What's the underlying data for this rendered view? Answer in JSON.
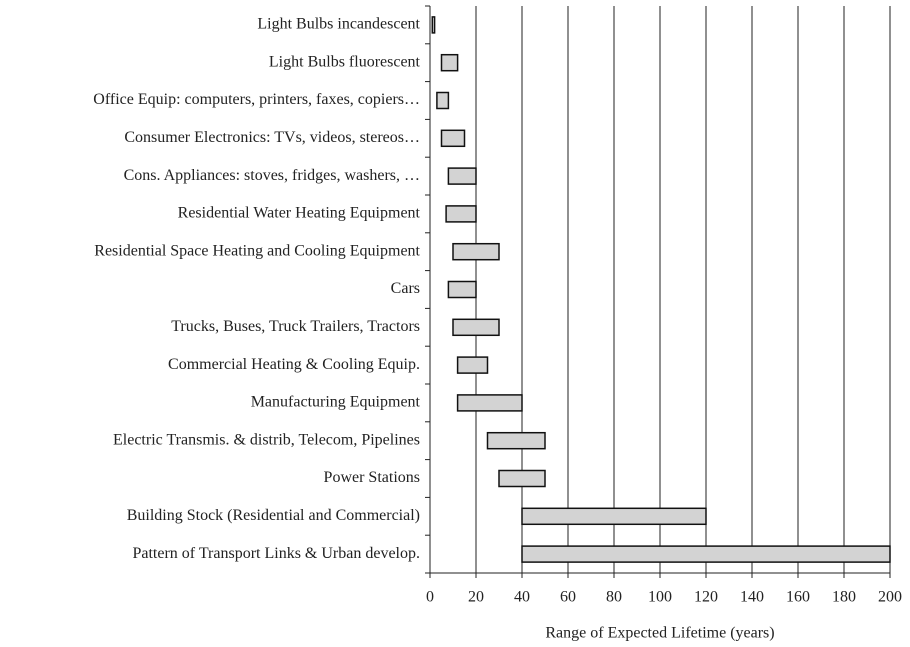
{
  "chart_data": {
    "type": "range-bar",
    "categories": [
      "Light Bulbs incandescent",
      "Light Bulbs fluorescent",
      "Office Equip: computers, printers, faxes, copiers…",
      "Consumer Electronics: TVs, videos, stereos…",
      "Cons. Appliances: stoves, fridges, washers, …",
      "Residential Water Heating Equipment",
      "Residential Space Heating and Cooling  Equipment",
      "Cars",
      "Trucks, Buses, Truck Trailers, Tractors",
      "Commercial Heating & Cooling Equip.",
      "Manufacturing Equipment",
      "Electric Transmis. & distrib, Telecom, Pipelines",
      "Power Stations",
      "Building Stock (Residential and Commercial)",
      "Pattern of Transport Links & Urban develop."
    ],
    "starts": [
      1,
      5,
      3,
      5,
      8,
      7,
      10,
      8,
      10,
      12,
      12,
      25,
      30,
      40,
      40
    ],
    "ends": [
      2,
      12,
      8,
      15,
      20,
      20,
      30,
      20,
      30,
      25,
      40,
      50,
      50,
      120,
      200
    ],
    "color": "#d3d3d3",
    "x_label": "Range of Expected Lifetime  (years)",
    "xlim": [
      0,
      200
    ],
    "xticks": [
      0,
      20,
      40,
      60,
      80,
      100,
      120,
      140,
      160,
      180,
      200
    ],
    "grid": true
  }
}
